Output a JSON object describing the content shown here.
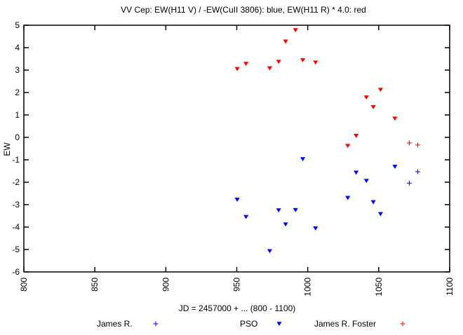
{
  "chart_data": {
    "type": "scatter",
    "title": "VV Cep: EW(H11 V) / -EW(CuII 3806): blue, EW(H11 R) * 4.0: red",
    "xlabel": "JD = 2457000 + ... (800 - 1100)",
    "ylabel": "EW",
    "xlim": [
      800,
      1100
    ],
    "ylim": [
      -6,
      5
    ],
    "xticks": [
      "800",
      "850",
      "900",
      "950",
      "1000",
      "1050",
      "1100"
    ],
    "yticks": [
      "5",
      "4",
      "3",
      "2",
      "1",
      "0",
      "-1",
      "-2",
      "-3",
      "-4",
      "-5",
      "-6"
    ],
    "grid": false,
    "legend_position": "bottom",
    "legend": [
      {
        "label": "James R.",
        "marker": "plus",
        "color": "#0000ff"
      },
      {
        "label": "PSO",
        "marker": "triangle-down",
        "color": "#0000ff"
      },
      {
        "label": "James R. Foster",
        "marker": "plus",
        "color": "#ff0000"
      }
    ],
    "series": [
      {
        "name": "PSO (red, H11 R * 4.0)",
        "marker": "triangle-down",
        "color": "#ff0000",
        "x": [
          950.3,
          956.5,
          973.2,
          979.5,
          984.4,
          991.4,
          996.5,
          1005.5,
          1028.2,
          1034.1,
          1041.3,
          1046.2,
          1051.3,
          1061.4
        ],
        "y": [
          3.05,
          3.28,
          3.08,
          3.37,
          4.27,
          4.78,
          3.44,
          3.34,
          -0.38,
          0.07,
          1.78,
          1.35,
          2.12,
          0.84
        ]
      },
      {
        "name": "PSO (blue, H11 V / -CuII)",
        "marker": "triangle-down",
        "color": "#0000ff",
        "x": [
          950.3,
          956.5,
          973.2,
          979.5,
          984.4,
          991.4,
          996.5,
          1005.5,
          1028.2,
          1034.1,
          1041.3,
          1046.2,
          1051.3,
          1061.4
        ],
        "y": [
          -2.78,
          -3.55,
          -5.07,
          -3.25,
          -3.88,
          -3.24,
          -0.97,
          -4.06,
          -2.7,
          -1.57,
          -1.94,
          -2.89,
          -3.42,
          -1.31
        ]
      },
      {
        "name": "James R. Foster (red)",
        "marker": "plus",
        "color": "#ff0000",
        "x": [
          1071.6,
          1077.5
        ],
        "y": [
          -0.25,
          -0.34
        ]
      },
      {
        "name": "James R. (blue)",
        "marker": "plus",
        "color": "#0000ff",
        "x": [
          1071.6,
          1077.5
        ],
        "y": [
          -2.04,
          -1.53
        ]
      }
    ]
  }
}
